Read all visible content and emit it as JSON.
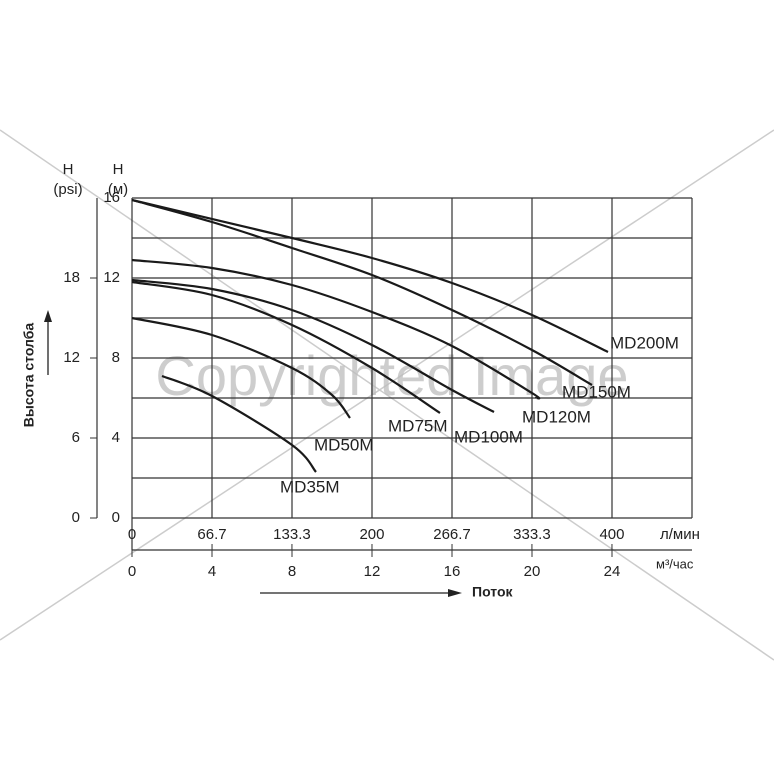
{
  "chart_data": {
    "type": "line",
    "watermark": "Copyrighted Image",
    "y_label": "Высота столба",
    "y_unit_symbol": "H",
    "y_unit": "(м)",
    "y2_unit_symbol": "H",
    "y2_unit": "(psi)",
    "x_label": "Поток",
    "x_unit": "м³/час",
    "x2_unit": "л/мин",
    "xlim": [
      0,
      28
    ],
    "xticks": [
      0,
      4,
      8,
      12,
      16,
      20,
      24
    ],
    "x2lim": [
      0,
      466.7
    ],
    "x2ticks": [
      0,
      66.7,
      133.3,
      200,
      266.7,
      333.3,
      400
    ],
    "ylim": [
      0,
      16
    ],
    "yticks": [
      0,
      4,
      8,
      12,
      16
    ],
    "y2lim": [
      0,
      24
    ],
    "y2ticks": [
      0,
      6,
      12,
      18
    ],
    "grid": true,
    "color": "#1a1a1a",
    "series": [
      {
        "name": "MD200M",
        "x": [
          0,
          8,
          12,
          16,
          20,
          23.8
        ],
        "values": [
          15.9,
          14,
          13,
          11.75,
          10.15,
          8.3
        ]
      },
      {
        "name": "MD150M",
        "x": [
          0,
          4,
          8,
          12,
          16,
          20,
          23
        ],
        "values": [
          15.9,
          14.8,
          13.5,
          12.15,
          10.4,
          8.4,
          6.65
        ]
      },
      {
        "name": "MD120M",
        "x": [
          0,
          4,
          8,
          12,
          16,
          20,
          20.2
        ],
        "values": [
          12.9,
          12.5,
          11.65,
          10.3,
          8.6,
          6.25,
          6.0
        ]
      },
      {
        "name": "MD100M",
        "x": [
          0,
          4,
          8,
          12,
          16,
          18.1
        ],
        "values": [
          11.9,
          11.45,
          10.4,
          8.65,
          6.4,
          5.3
        ]
      },
      {
        "name": "MD75M",
        "x": [
          0,
          4,
          8,
          12,
          15.4
        ],
        "values": [
          11.8,
          11.15,
          9.65,
          7.5,
          5.25
        ]
      },
      {
        "name": "MD50M",
        "x": [
          0,
          4,
          8,
          10,
          10.9
        ],
        "values": [
          10,
          9.15,
          7.5,
          6.15,
          5
        ]
      },
      {
        "name": "MD35M",
        "x": [
          1.5,
          4,
          8,
          9.2
        ],
        "values": [
          7.1,
          6.1,
          3.65,
          2.3
        ]
      }
    ]
  }
}
